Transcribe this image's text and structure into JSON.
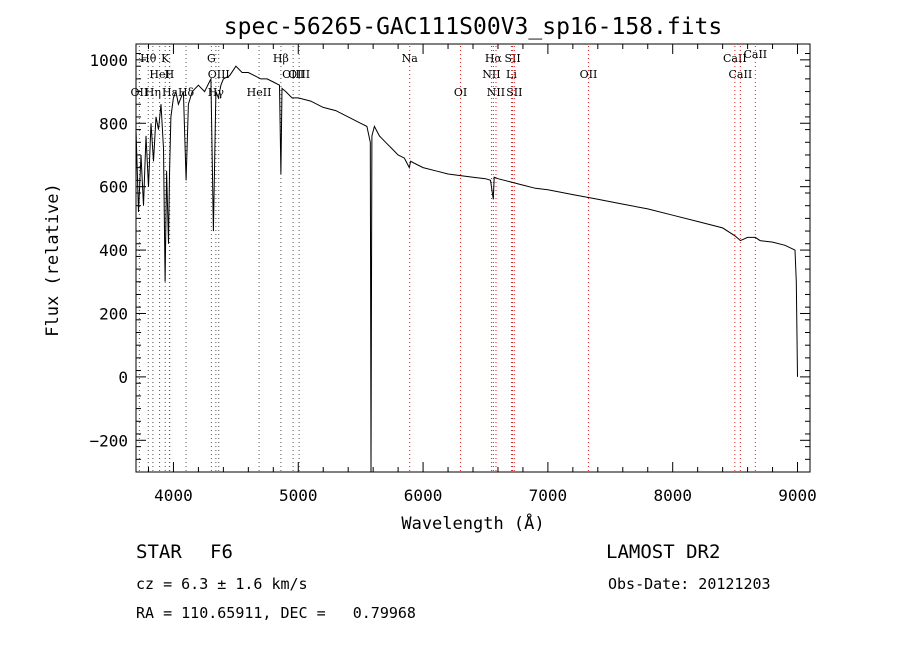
{
  "chart_data": {
    "type": "line",
    "title": "spec-56265-GAC111S00V3_sp16-158.fits",
    "xlabel": "Wavelength (Å)",
    "ylabel": "Flux (relative)",
    "xlim": [
      3700,
      9100
    ],
    "ylim": [
      -300,
      1050
    ],
    "xticks": [
      4000,
      5000,
      6000,
      7000,
      8000,
      9000
    ],
    "xtick_labels": [
      "4000",
      "5000",
      "6000",
      "7000",
      "8000",
      "9000"
    ],
    "yticks": [
      -200,
      0,
      200,
      400,
      600,
      800,
      1000
    ],
    "ytick_labels": [
      "−200",
      "0",
      "200",
      "400",
      "600",
      "800",
      "1000"
    ],
    "grid": false,
    "series": [
      {
        "x": [
          3700,
          3720,
          3740,
          3760,
          3780,
          3800,
          3820,
          3840,
          3860,
          3880,
          3900,
          3920,
          3933,
          3945,
          3960,
          3968,
          3980,
          4000,
          4020,
          4040,
          4060,
          4080,
          4101,
          4120,
          4150,
          4200,
          4250,
          4300,
          4320,
          4340,
          4360,
          4380,
          4400,
          4450,
          4500,
          4550,
          4600,
          4650,
          4700,
          4750,
          4800,
          4850,
          4861,
          4870,
          4900,
          4950,
          5000,
          5100,
          5200,
          5300,
          5400,
          5500,
          5550,
          5577,
          5583,
          5590,
          5610,
          5650,
          5700,
          5750,
          5800,
          5850,
          5890,
          5900,
          5950,
          6000,
          6100,
          6200,
          6300,
          6400,
          6500,
          6540,
          6563,
          6570,
          6600,
          6700,
          6800,
          6900,
          7000,
          7200,
          7400,
          7600,
          7800,
          8000,
          8200,
          8400,
          8498,
          8542,
          8600,
          8662,
          8700,
          8800,
          8900,
          8980,
          8990,
          9000
        ],
        "y": [
          780,
          520,
          700,
          540,
          760,
          600,
          800,
          680,
          820,
          780,
          860,
          720,
          300,
          650,
          420,
          640,
          820,
          880,
          900,
          860,
          880,
          900,
          620,
          860,
          900,
          920,
          900,
          940,
          460,
          900,
          880,
          920,
          940,
          950,
          980,
          960,
          960,
          950,
          940,
          940,
          930,
          920,
          640,
          910,
          900,
          880,
          880,
          870,
          850,
          840,
          820,
          800,
          790,
          740,
          -300,
          760,
          790,
          760,
          740,
          720,
          700,
          690,
          660,
          680,
          670,
          660,
          650,
          640,
          635,
          630,
          625,
          620,
          560,
          630,
          625,
          615,
          605,
          595,
          590,
          575,
          560,
          545,
          530,
          510,
          490,
          470,
          445,
          430,
          440,
          440,
          430,
          425,
          415,
          400,
          300,
          0
        ]
      }
    ],
    "lines": [
      {
        "label": "Hθ",
        "x": 3798,
        "row": 1
      },
      {
        "label": "K",
        "x": 3934,
        "row": 1
      },
      {
        "label": "HeI",
        "x": 3889,
        "row": 2
      },
      {
        "label": "H",
        "x": 3968,
        "row": 2
      },
      {
        "label": "OII",
        "x": 3727,
        "row": 3
      },
      {
        "label": "Hη",
        "x": 3835,
        "row": 3
      },
      {
        "label": "Hε",
        "x": 3970,
        "row": 3
      },
      {
        "label": "G",
        "x": 4304,
        "row": 1
      },
      {
        "label": "OIII",
        "x": 4363,
        "row": 2
      },
      {
        "label": "Hγ",
        "x": 4340,
        "row": 3
      },
      {
        "label": "Hδ",
        "x": 4101,
        "row": 3
      },
      {
        "label": "Hβ",
        "x": 4861,
        "row": 1
      },
      {
        "label": "OIII",
        "x": 4959,
        "row": 2
      },
      {
        "label": "OIII",
        "x": 5007,
        "row": 2
      },
      {
        "label": "HeII",
        "x": 4686,
        "row": 3
      },
      {
        "label": "Na",
        "x": 5893,
        "row": 1
      },
      {
        "label": "OI",
        "x": 6300,
        "row": 3
      },
      {
        "label": "Hα",
        "x": 6563,
        "row": 1
      },
      {
        "label": "SII",
        "x": 6717,
        "row": 1
      },
      {
        "label": "NII",
        "x": 6548,
        "row": 2
      },
      {
        "label": "Li",
        "x": 6708,
        "row": 2
      },
      {
        "label": "NII",
        "x": 6584,
        "row": 3
      },
      {
        "label": "SII",
        "x": 6731,
        "row": 3
      },
      {
        "label": "OII",
        "x": 7325,
        "row": 2
      },
      {
        "label": "CaII",
        "x": 8498,
        "row": 1
      },
      {
        "label": "CaII",
        "x": 8542,
        "row": 2
      },
      {
        "label": "CaII",
        "x": 8662,
        "row": 0
      }
    ]
  },
  "info": {
    "class_label": "STAR",
    "subclass": "F6",
    "survey": "LAMOST DR2",
    "cz": "cz = 6.3 ± 1.6 km/s",
    "obs_date": "Obs-Date: 20121203",
    "coords": "RA = 110.65911, DEC =   0.79968"
  }
}
